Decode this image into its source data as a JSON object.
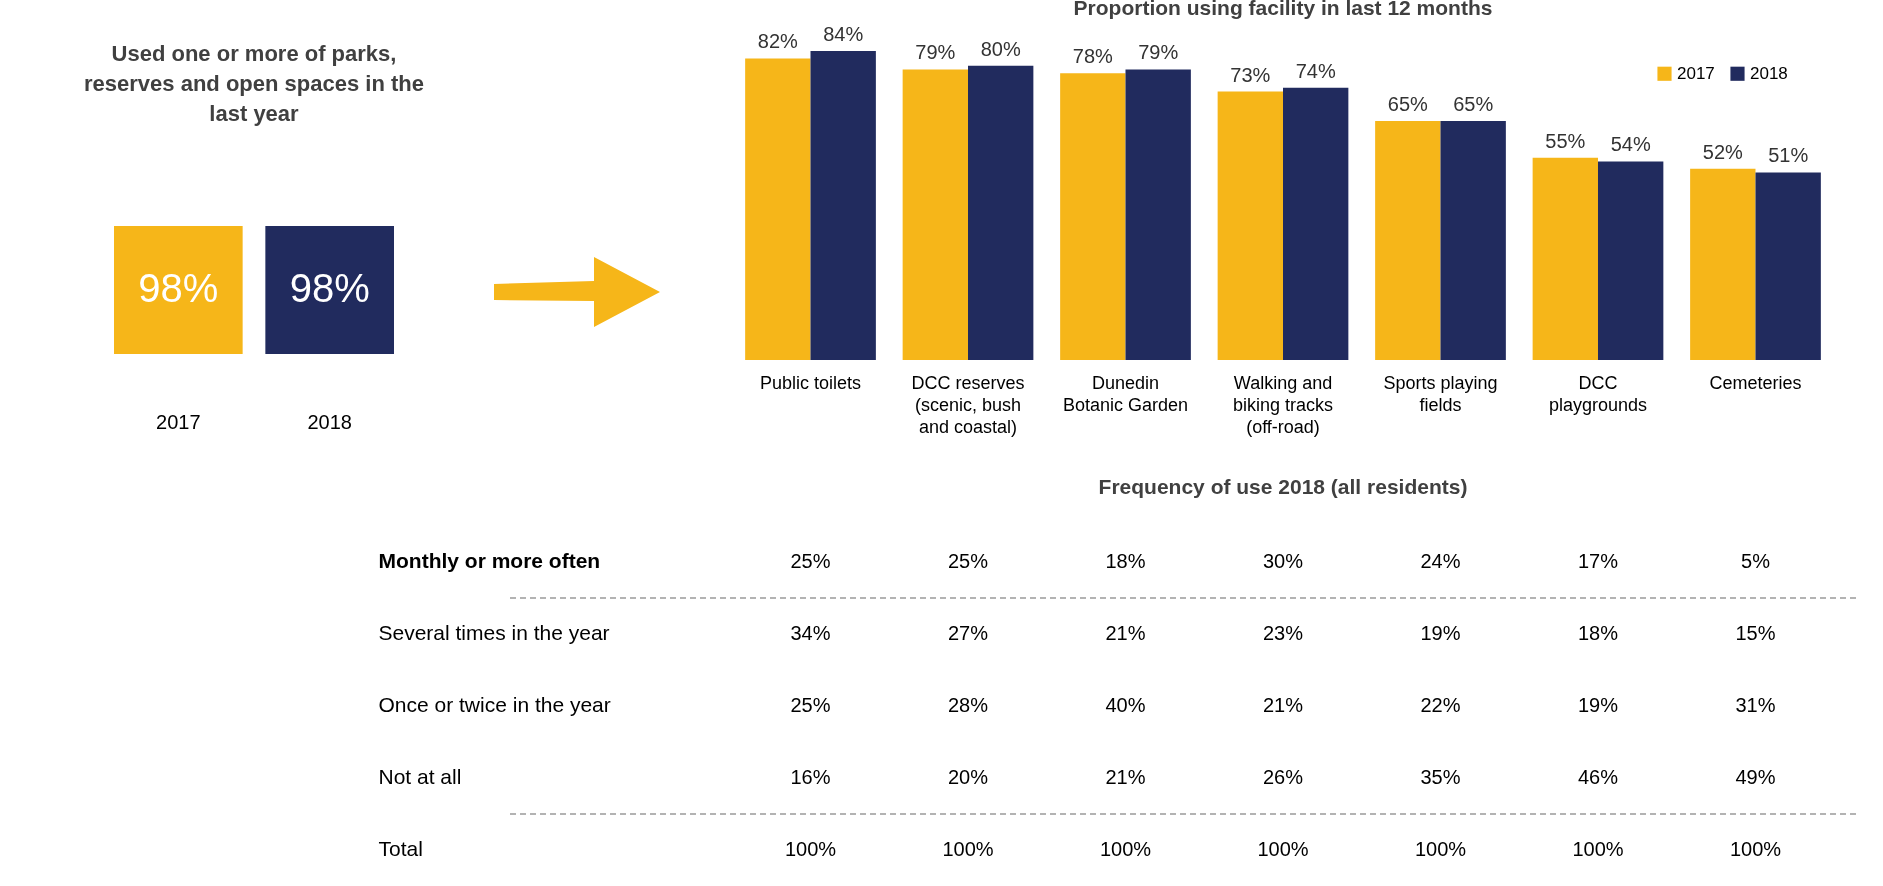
{
  "chart_data": [
    {
      "type": "other",
      "title": "Used one or more of parks, reserves and open spaces in the last year",
      "categories": [
        "2017",
        "2018"
      ],
      "values": [
        98,
        98
      ],
      "value_labels": [
        "98%",
        "98%"
      ],
      "colors": [
        "#f6b619",
        "#212b5e"
      ]
    },
    {
      "type": "bar",
      "title": "Proportion using facility in last 12 months",
      "categories": [
        "Public toilets",
        "DCC reserves (scenic, bush and coastal)",
        "Dunedin Botanic Garden",
        "Walking and biking tracks (off-road)",
        "Sports playing fields",
        "DCC playgrounds",
        "Cemeteries"
      ],
      "series": [
        {
          "name": "2017",
          "color": "#f6b619",
          "values": [
            82,
            79,
            78,
            73,
            65,
            55,
            52
          ],
          "value_labels": [
            "82%",
            "79%",
            "78%",
            "73%",
            "65%",
            "55%",
            "52%"
          ]
        },
        {
          "name": "2018",
          "color": "#212b5e",
          "values": [
            84,
            80,
            79,
            74,
            65,
            54,
            51
          ],
          "value_labels": [
            "84%",
            "80%",
            "79%",
            "74%",
            "65%",
            "54%",
            "51%"
          ]
        }
      ],
      "tick_labels": "x",
      "legend": "top right",
      "grid": false
    },
    {
      "type": "heatmap",
      "title": "Frequency of use 2018 (all residents)",
      "categories": [
        null,
        null,
        null,
        null,
        null,
        null,
        null
      ],
      "y_categories": [
        "Monthly or more often",
        "Several times in the year",
        "Once or twice in the year",
        "Not at all",
        "Total"
      ],
      "cells": [
        [
          25,
          25,
          18,
          30,
          24,
          17,
          5
        ],
        [
          34,
          27,
          21,
          23,
          19,
          18,
          15
        ],
        [
          25,
          28,
          40,
          21,
          22,
          19,
          31
        ],
        [
          16,
          20,
          21,
          26,
          35,
          46,
          49
        ],
        [
          100,
          100,
          100,
          100,
          100,
          100,
          100
        ]
      ],
      "cell_labels": [
        [
          "25%",
          "25%",
          "18%",
          "30%",
          "24%",
          "17%",
          "5%"
        ],
        [
          "34%",
          "27%",
          "21%",
          "23%",
          "19%",
          "18%",
          "15%"
        ],
        [
          "25%",
          "28%",
          "40%",
          "21%",
          "22%",
          "19%",
          "31%"
        ],
        [
          "16%",
          "20%",
          "21%",
          "26%",
          "35%",
          "46%",
          "49%"
        ],
        [
          "100%",
          "100%",
          "100%",
          "100%",
          "100%",
          "100%",
          "100%"
        ]
      ],
      "tick_labels": "y"
    }
  ]
}
